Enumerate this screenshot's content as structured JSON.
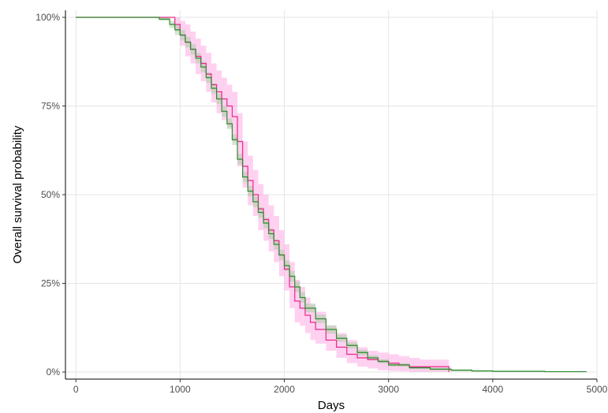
{
  "chart_data": {
    "type": "line",
    "title": "",
    "xlabel": "Days",
    "ylabel": "Overall survival probability",
    "xlim": [
      -100,
      5000
    ],
    "ylim": [
      -0.02,
      1.02
    ],
    "x_ticks": [
      0,
      1000,
      2000,
      3000,
      4000,
      5000
    ],
    "x_tick_labels": [
      "0",
      "1000",
      "2000",
      "3000",
      "4000",
      "5000"
    ],
    "y_ticks": [
      0,
      0.25,
      0.5,
      0.75,
      1.0
    ],
    "y_tick_labels": [
      "0%",
      "25%",
      "50%",
      "75%",
      "100%"
    ],
    "grid": true,
    "legend": "none",
    "series": [
      {
        "color": "#e7298a",
        "band_color": "#ff99dd",
        "step": true,
        "x": [
          0,
          850,
          950,
          1000,
          1050,
          1100,
          1150,
          1200,
          1250,
          1300,
          1350,
          1400,
          1450,
          1500,
          1550,
          1600,
          1650,
          1700,
          1750,
          1800,
          1850,
          1900,
          1950,
          2000,
          2050,
          2100,
          2150,
          2200,
          2250,
          2300,
          2400,
          2500,
          2600,
          2700,
          2800,
          2900,
          3000,
          3100,
          3200,
          3300,
          3400,
          3580
        ],
        "y": [
          1.0,
          1.0,
          0.98,
          0.95,
          0.93,
          0.91,
          0.89,
          0.87,
          0.84,
          0.81,
          0.79,
          0.77,
          0.75,
          0.72,
          0.65,
          0.58,
          0.54,
          0.5,
          0.46,
          0.43,
          0.4,
          0.37,
          0.33,
          0.29,
          0.24,
          0.2,
          0.18,
          0.16,
          0.14,
          0.12,
          0.09,
          0.07,
          0.05,
          0.04,
          0.035,
          0.03,
          0.025,
          0.02,
          0.015,
          0.015,
          0.015,
          0.0
        ],
        "lower": [
          1.0,
          1.0,
          0.96,
          0.92,
          0.89,
          0.87,
          0.84,
          0.82,
          0.79,
          0.76,
          0.73,
          0.71,
          0.69,
          0.65,
          0.58,
          0.52,
          0.47,
          0.44,
          0.4,
          0.37,
          0.34,
          0.31,
          0.27,
          0.23,
          0.18,
          0.14,
          0.13,
          0.11,
          0.09,
          0.08,
          0.06,
          0.04,
          0.025,
          0.015,
          0.01,
          0.005,
          0.003,
          0.002,
          0.0,
          0.0,
          0.0,
          0.0
        ],
        "upper": [
          1.0,
          1.0,
          1.0,
          0.99,
          0.98,
          0.96,
          0.94,
          0.92,
          0.9,
          0.87,
          0.85,
          0.83,
          0.81,
          0.79,
          0.73,
          0.65,
          0.61,
          0.57,
          0.53,
          0.5,
          0.47,
          0.44,
          0.4,
          0.36,
          0.31,
          0.26,
          0.24,
          0.21,
          0.19,
          0.17,
          0.13,
          0.11,
          0.09,
          0.07,
          0.06,
          0.055,
          0.05,
          0.045,
          0.04,
          0.035,
          0.035,
          0.035
        ]
      },
      {
        "color": "#2d8a2d",
        "band_color": "#99cc99",
        "step": true,
        "x": [
          0,
          700,
          800,
          900,
          950,
          1000,
          1050,
          1100,
          1150,
          1200,
          1250,
          1300,
          1350,
          1400,
          1450,
          1500,
          1550,
          1600,
          1650,
          1700,
          1750,
          1800,
          1850,
          1900,
          1950,
          2000,
          2050,
          2100,
          2150,
          2200,
          2300,
          2400,
          2500,
          2600,
          2700,
          2800,
          2900,
          3000,
          3200,
          3400,
          3600,
          3800,
          4000,
          4500,
          4900
        ],
        "y": [
          1.0,
          1.0,
          0.995,
          0.98,
          0.965,
          0.95,
          0.93,
          0.91,
          0.885,
          0.86,
          0.83,
          0.8,
          0.77,
          0.735,
          0.7,
          0.655,
          0.6,
          0.55,
          0.51,
          0.48,
          0.45,
          0.42,
          0.39,
          0.36,
          0.33,
          0.3,
          0.27,
          0.24,
          0.21,
          0.18,
          0.15,
          0.12,
          0.095,
          0.075,
          0.055,
          0.04,
          0.03,
          0.02,
          0.012,
          0.008,
          0.005,
          0.003,
          0.002,
          0.001,
          0.001
        ],
        "lower": [
          1.0,
          1.0,
          0.99,
          0.97,
          0.95,
          0.935,
          0.915,
          0.895,
          0.87,
          0.845,
          0.815,
          0.785,
          0.755,
          0.72,
          0.685,
          0.64,
          0.585,
          0.535,
          0.495,
          0.465,
          0.435,
          0.405,
          0.375,
          0.345,
          0.315,
          0.285,
          0.255,
          0.225,
          0.195,
          0.168,
          0.138,
          0.108,
          0.085,
          0.066,
          0.047,
          0.033,
          0.024,
          0.015,
          0.008,
          0.004,
          0.002,
          0.001,
          0.0,
          0.0,
          0.0
        ],
        "upper": [
          1.0,
          1.0,
          1.0,
          0.99,
          0.98,
          0.965,
          0.945,
          0.925,
          0.9,
          0.875,
          0.845,
          0.815,
          0.785,
          0.75,
          0.715,
          0.67,
          0.615,
          0.565,
          0.525,
          0.495,
          0.465,
          0.435,
          0.405,
          0.375,
          0.345,
          0.315,
          0.285,
          0.255,
          0.225,
          0.193,
          0.162,
          0.132,
          0.105,
          0.084,
          0.063,
          0.047,
          0.036,
          0.025,
          0.016,
          0.012,
          0.008,
          0.005,
          0.004,
          0.002,
          0.002
        ]
      }
    ]
  }
}
